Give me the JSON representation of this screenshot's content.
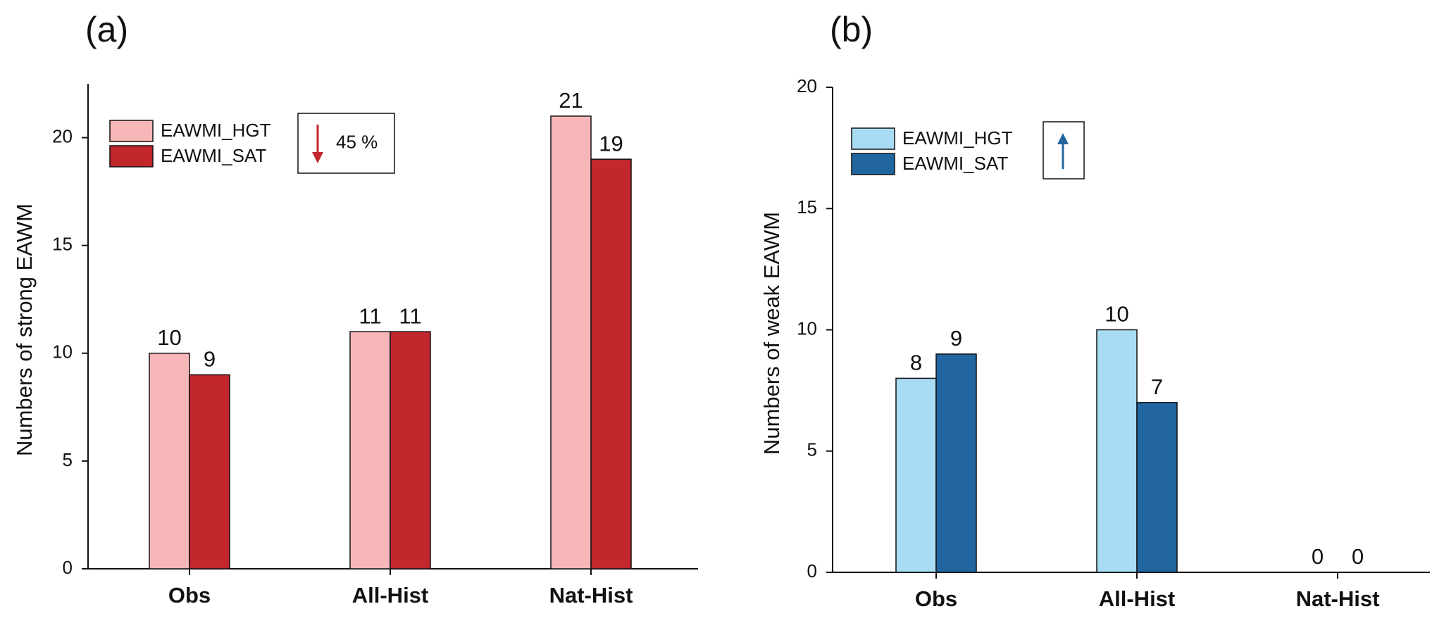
{
  "chart_data": [
    {
      "type": "bar",
      "title": "(a)",
      "ylabel": "Numbers of strong EAWM",
      "categories": [
        "Obs",
        "All-Hist",
        "Nat-Hist"
      ],
      "series": [
        {
          "name": "EAWMI_HGT",
          "color": "#f7b6b8",
          "values": [
            10,
            11,
            21
          ]
        },
        {
          "name": "EAWMI_SAT",
          "color": "#c1272d",
          "values": [
            9,
            11,
            19
          ]
        }
      ],
      "ylim": [
        0,
        22.5
      ],
      "yticks": [
        0,
        5,
        10,
        15,
        20
      ],
      "legend": "upper left",
      "trend_arrow": "down",
      "arrow_color": "#c1272d",
      "annotation": "45 %"
    },
    {
      "type": "bar",
      "title": "(b)",
      "ylabel": "Numbers of weak EAWM",
      "categories": [
        "Obs",
        "All-Hist",
        "Nat-Hist"
      ],
      "series": [
        {
          "name": "EAWMI_HGT",
          "color": "#a8dcf5",
          "values": [
            8,
            10,
            0
          ]
        },
        {
          "name": "EAWMI_SAT",
          "color": "#2166a0",
          "values": [
            9,
            7,
            0
          ]
        }
      ],
      "ylim": [
        0,
        20
      ],
      "yticks": [
        0,
        5,
        10,
        15,
        20
      ],
      "legend": "upper left",
      "trend_arrow": "up",
      "arrow_color": "#2166a0"
    }
  ]
}
